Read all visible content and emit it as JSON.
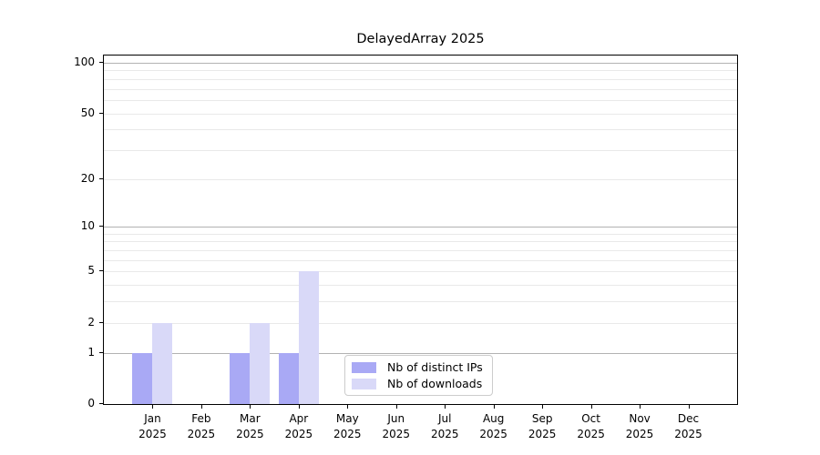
{
  "title": "DelayedArray 2025",
  "legend": {
    "items": [
      {
        "label": "Nb of distinct IPs",
        "color": "#a9a9f5"
      },
      {
        "label": "Nb of downloads",
        "color": "#d9d9f8"
      }
    ]
  },
  "chart_data": {
    "type": "bar",
    "title": "DelayedArray 2025",
    "categories": [
      "Jan 2025",
      "Feb 2025",
      "Mar 2025",
      "Apr 2025",
      "May 2025",
      "Jun 2025",
      "Jul 2025",
      "Aug 2025",
      "Sep 2025",
      "Oct 2025",
      "Nov 2025",
      "Dec 2025"
    ],
    "series": [
      {
        "name": "Nb of distinct IPs",
        "color": "#a9a9f5",
        "values": [
          1,
          0,
          1,
          1,
          0,
          0,
          0,
          0,
          0,
          0,
          0,
          0
        ]
      },
      {
        "name": "Nb of downloads",
        "color": "#d9d9f8",
        "values": [
          2,
          0,
          2,
          5,
          0,
          0,
          0,
          0,
          0,
          0,
          0,
          0
        ]
      }
    ],
    "yscale": "log1p",
    "ylim": [
      0,
      113
    ],
    "major_yticks": [
      0,
      1,
      2,
      5,
      10,
      20,
      50,
      100
    ],
    "minor_yticks": [
      3,
      4,
      6,
      7,
      8,
      9,
      30,
      40,
      60,
      70,
      80,
      90
    ],
    "grid": "horizontal",
    "legend_position": "lower center",
    "grid_color_power10": "#b2b2b2",
    "grid_color_minor": "#e9e9e9",
    "axis_color": "#000000"
  }
}
